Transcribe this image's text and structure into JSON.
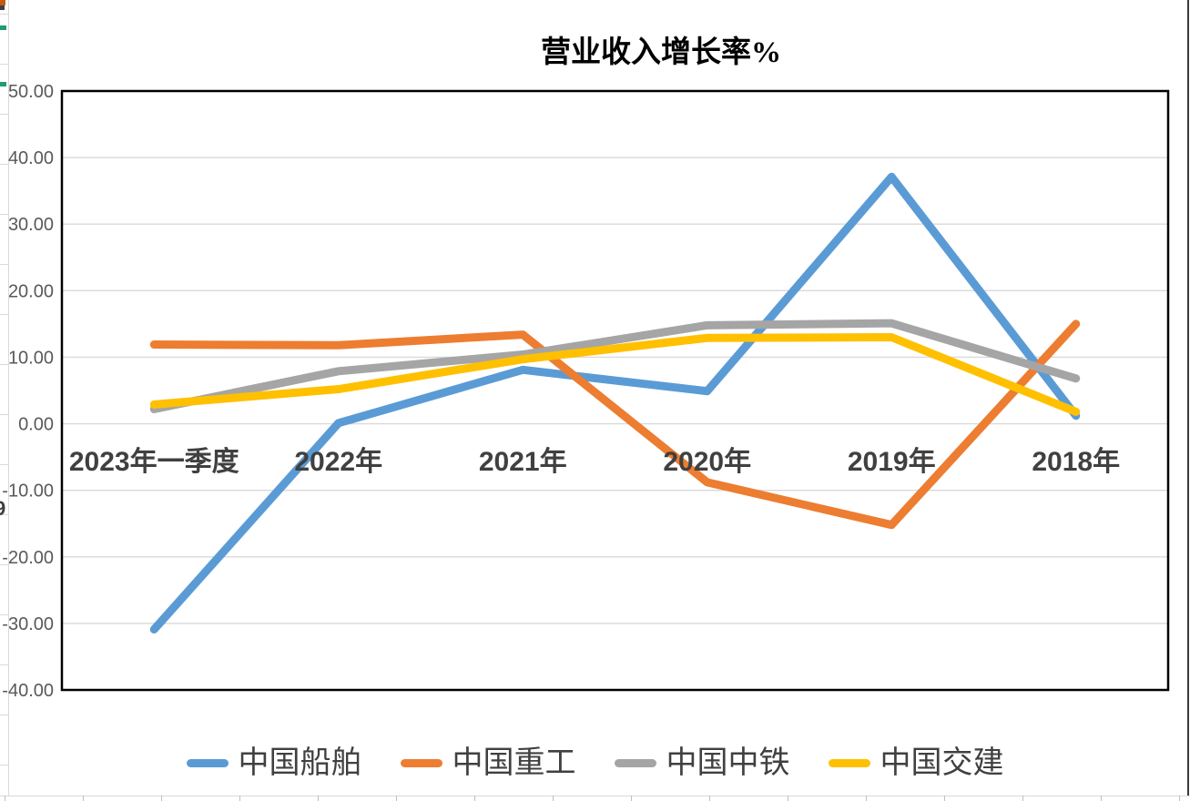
{
  "window": {
    "background": "#ffffff"
  },
  "spreadsheet_remnants": {
    "gridline_color": "#d9d9d9",
    "tick_color": "#bfbfbf",
    "green_accent_color": "#1e9e6e",
    "partial_cell_text": "9"
  },
  "chart_data": {
    "type": "line",
    "title": "营业收入增长率%",
    "categories": [
      "2023年一季度",
      "2022年",
      "2021年",
      "2020年",
      "2019年",
      "2018年"
    ],
    "series": [
      {
        "name": "中国船舶",
        "color": "#5B9BD5",
        "values": [
          -30.9,
          0.1,
          8.1,
          4.9,
          37.1,
          1.2
        ]
      },
      {
        "name": "中国重工",
        "color": "#ED7D31",
        "values": [
          11.9,
          11.8,
          13.4,
          -8.8,
          -15.2,
          15.0
        ]
      },
      {
        "name": "中国中铁",
        "color": "#A5A5A5",
        "values": [
          2.2,
          7.9,
          10.4,
          14.8,
          15.1,
          6.8
        ]
      },
      {
        "name": "中国交建",
        "color": "#FFC000",
        "values": [
          2.9,
          5.2,
          9.7,
          12.9,
          13.0,
          1.8
        ]
      }
    ],
    "y_axis": {
      "min": -40,
      "max": 50,
      "step": 10,
      "tick_labels": [
        "50.00",
        "40.00",
        "30.00",
        "20.00",
        "10.00",
        "0.00",
        "-10.00",
        "-20.00",
        "-30.00",
        "-40.00"
      ],
      "label_color": "#595959"
    },
    "x_axis": {
      "label_color": "#404040"
    },
    "gridline_color": "#d9d9d9",
    "plot_border_color": "#000000",
    "legend_position": "bottom",
    "grid": true
  }
}
